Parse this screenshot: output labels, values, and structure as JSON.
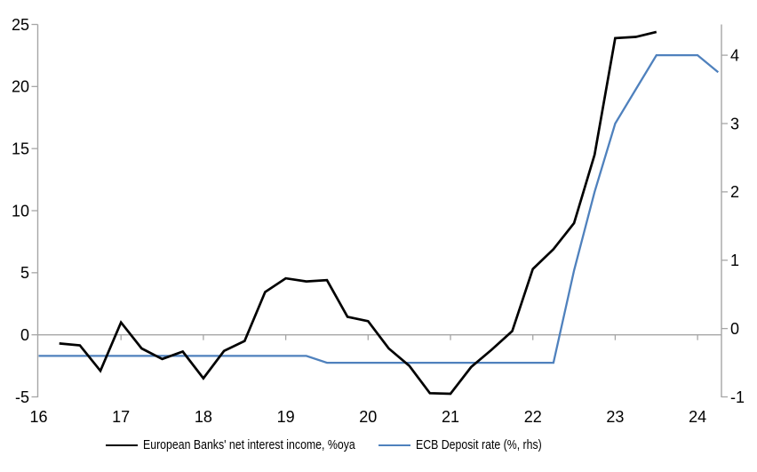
{
  "chart_data": {
    "type": "line",
    "title": "",
    "background": "#ffffff",
    "axis_color": "#a6a6a6",
    "grid": "zero-line-only",
    "legend_position": "bottom",
    "x_axis": {
      "domain": [
        16,
        24.29
      ],
      "ticks": [
        16,
        17,
        18,
        19,
        20,
        21,
        22,
        23,
        24
      ],
      "tick_labels": [
        "16",
        "17",
        "18",
        "19",
        "20",
        "21",
        "22",
        "23",
        "24"
      ]
    },
    "y_axis_left": {
      "domain": [
        -5,
        25
      ],
      "ticks": [
        -5,
        0,
        5,
        10,
        15,
        20,
        25
      ],
      "tick_labels": [
        "-5",
        "0",
        "5",
        "10",
        "15",
        "20",
        "25"
      ]
    },
    "y_axis_right": {
      "domain": [
        -1,
        4.45
      ],
      "ticks": [
        -1,
        0,
        1,
        2,
        3,
        4
      ],
      "tick_labels": [
        "-1",
        "0",
        "1",
        "2",
        "3",
        "4"
      ]
    },
    "series": [
      {
        "name": "European Banks' net interest income, %oya",
        "color": "#000000",
        "stroke_width": 2.7,
        "axis": "left",
        "x": [
          16.25,
          16.5,
          16.75,
          17.0,
          17.25,
          17.5,
          17.75,
          18.0,
          18.25,
          18.5,
          18.75,
          19.0,
          19.25,
          19.5,
          19.75,
          20.0,
          20.25,
          20.5,
          20.75,
          21.0,
          21.25,
          21.5,
          21.75,
          22.0,
          22.25,
          22.5,
          22.75,
          23.0,
          23.25,
          23.5
        ],
        "values": [
          -0.7,
          -0.85,
          -2.9,
          1.0,
          -1.1,
          -1.95,
          -1.35,
          -3.5,
          -1.3,
          -0.5,
          3.45,
          4.55,
          4.3,
          4.4,
          1.45,
          1.1,
          -1.1,
          -2.5,
          -4.7,
          -4.75,
          -2.6,
          -1.2,
          0.3,
          5.3,
          6.9,
          9.0,
          14.5,
          23.9,
          24.0,
          24.4
        ]
      },
      {
        "name": "ECB Deposit rate (%, rhs)",
        "color": "#4f81bd",
        "stroke_width": 2.3,
        "axis": "right",
        "x": [
          16.0,
          16.25,
          16.5,
          16.75,
          17.0,
          17.25,
          17.5,
          17.75,
          18.0,
          18.25,
          18.5,
          18.75,
          19.0,
          19.25,
          19.5,
          19.75,
          20.0,
          20.25,
          20.5,
          20.75,
          21.0,
          21.25,
          21.5,
          21.75,
          22.0,
          22.25,
          22.5,
          22.75,
          23.0,
          23.25,
          23.5,
          23.75,
          24.0,
          24.25
        ],
        "values": [
          -0.4,
          -0.4,
          -0.4,
          -0.4,
          -0.4,
          -0.4,
          -0.4,
          -0.4,
          -0.4,
          -0.4,
          -0.4,
          -0.4,
          -0.4,
          -0.4,
          -0.5,
          -0.5,
          -0.5,
          -0.5,
          -0.5,
          -0.5,
          -0.5,
          -0.5,
          -0.5,
          -0.5,
          -0.5,
          -0.5,
          0.85,
          2.0,
          3.0,
          3.5,
          4.0,
          4.0,
          4.0,
          3.75
        ]
      }
    ]
  }
}
